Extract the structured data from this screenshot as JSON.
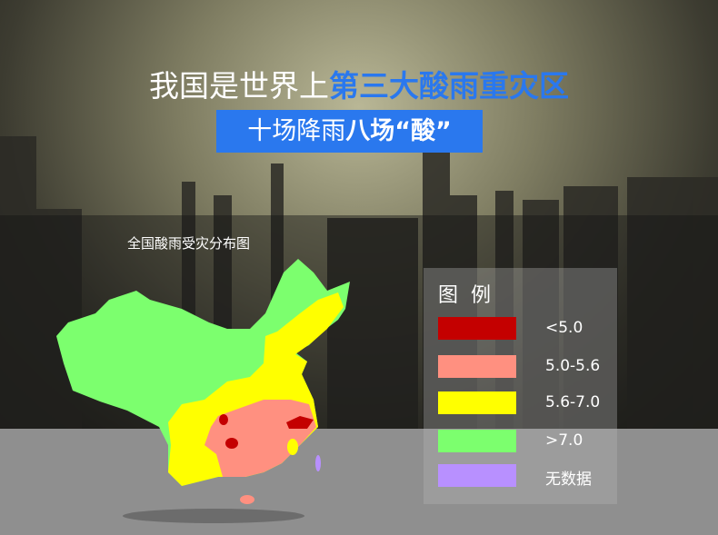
{
  "header": {
    "title_plain": "我国是世界上",
    "title_highlight": "第三大酸雨重灾区",
    "subtitle_plain": "十场降雨",
    "subtitle_bold": "八场“酸”"
  },
  "map": {
    "title": "全国酸雨受灾分布图"
  },
  "legend": {
    "title": "图例",
    "items": [
      {
        "label": "<5.0",
        "color": "#c40000"
      },
      {
        "label": "5.0-5.6",
        "color": "#ff9080"
      },
      {
        "label": "5.6-7.0",
        "color": "#ffff00"
      },
      {
        "label": ">7.0",
        "color": "#7cff6e"
      },
      {
        "label": "无数据",
        "color": "#b890ff"
      }
    ]
  },
  "colors": {
    "accent": "#2a78ee"
  }
}
